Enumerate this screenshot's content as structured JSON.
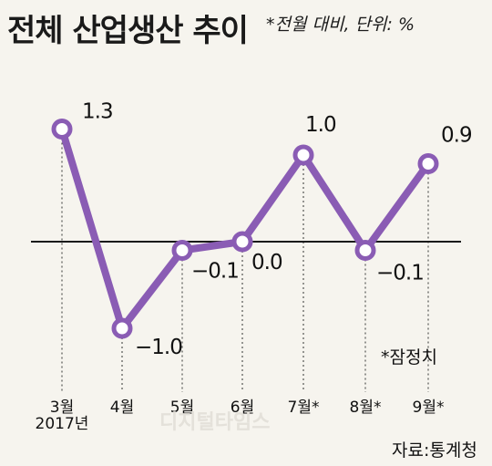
{
  "chart_data": {
    "type": "line",
    "title": "전체 산업생산 추이",
    "subtitle": "*전월 대비, 단위: %",
    "categories": [
      "3월",
      "4월",
      "5월",
      "6월",
      "7월*",
      "8월*",
      "9월*"
    ],
    "year_label": "2017년",
    "values": [
      1.3,
      -1.0,
      -0.1,
      0.0,
      1.0,
      -0.1,
      0.9
    ],
    "value_labels": [
      "1.3",
      "−1.0",
      "−0.1",
      "0.0",
      "1.0",
      "−0.1",
      "0.9"
    ],
    "series_color": "#8a5cb4",
    "ylim": [
      -1.3,
      1.6
    ],
    "zero_line": true,
    "note": "*잠정치",
    "source": "자료:통계청",
    "watermark": "디지털타임스"
  }
}
